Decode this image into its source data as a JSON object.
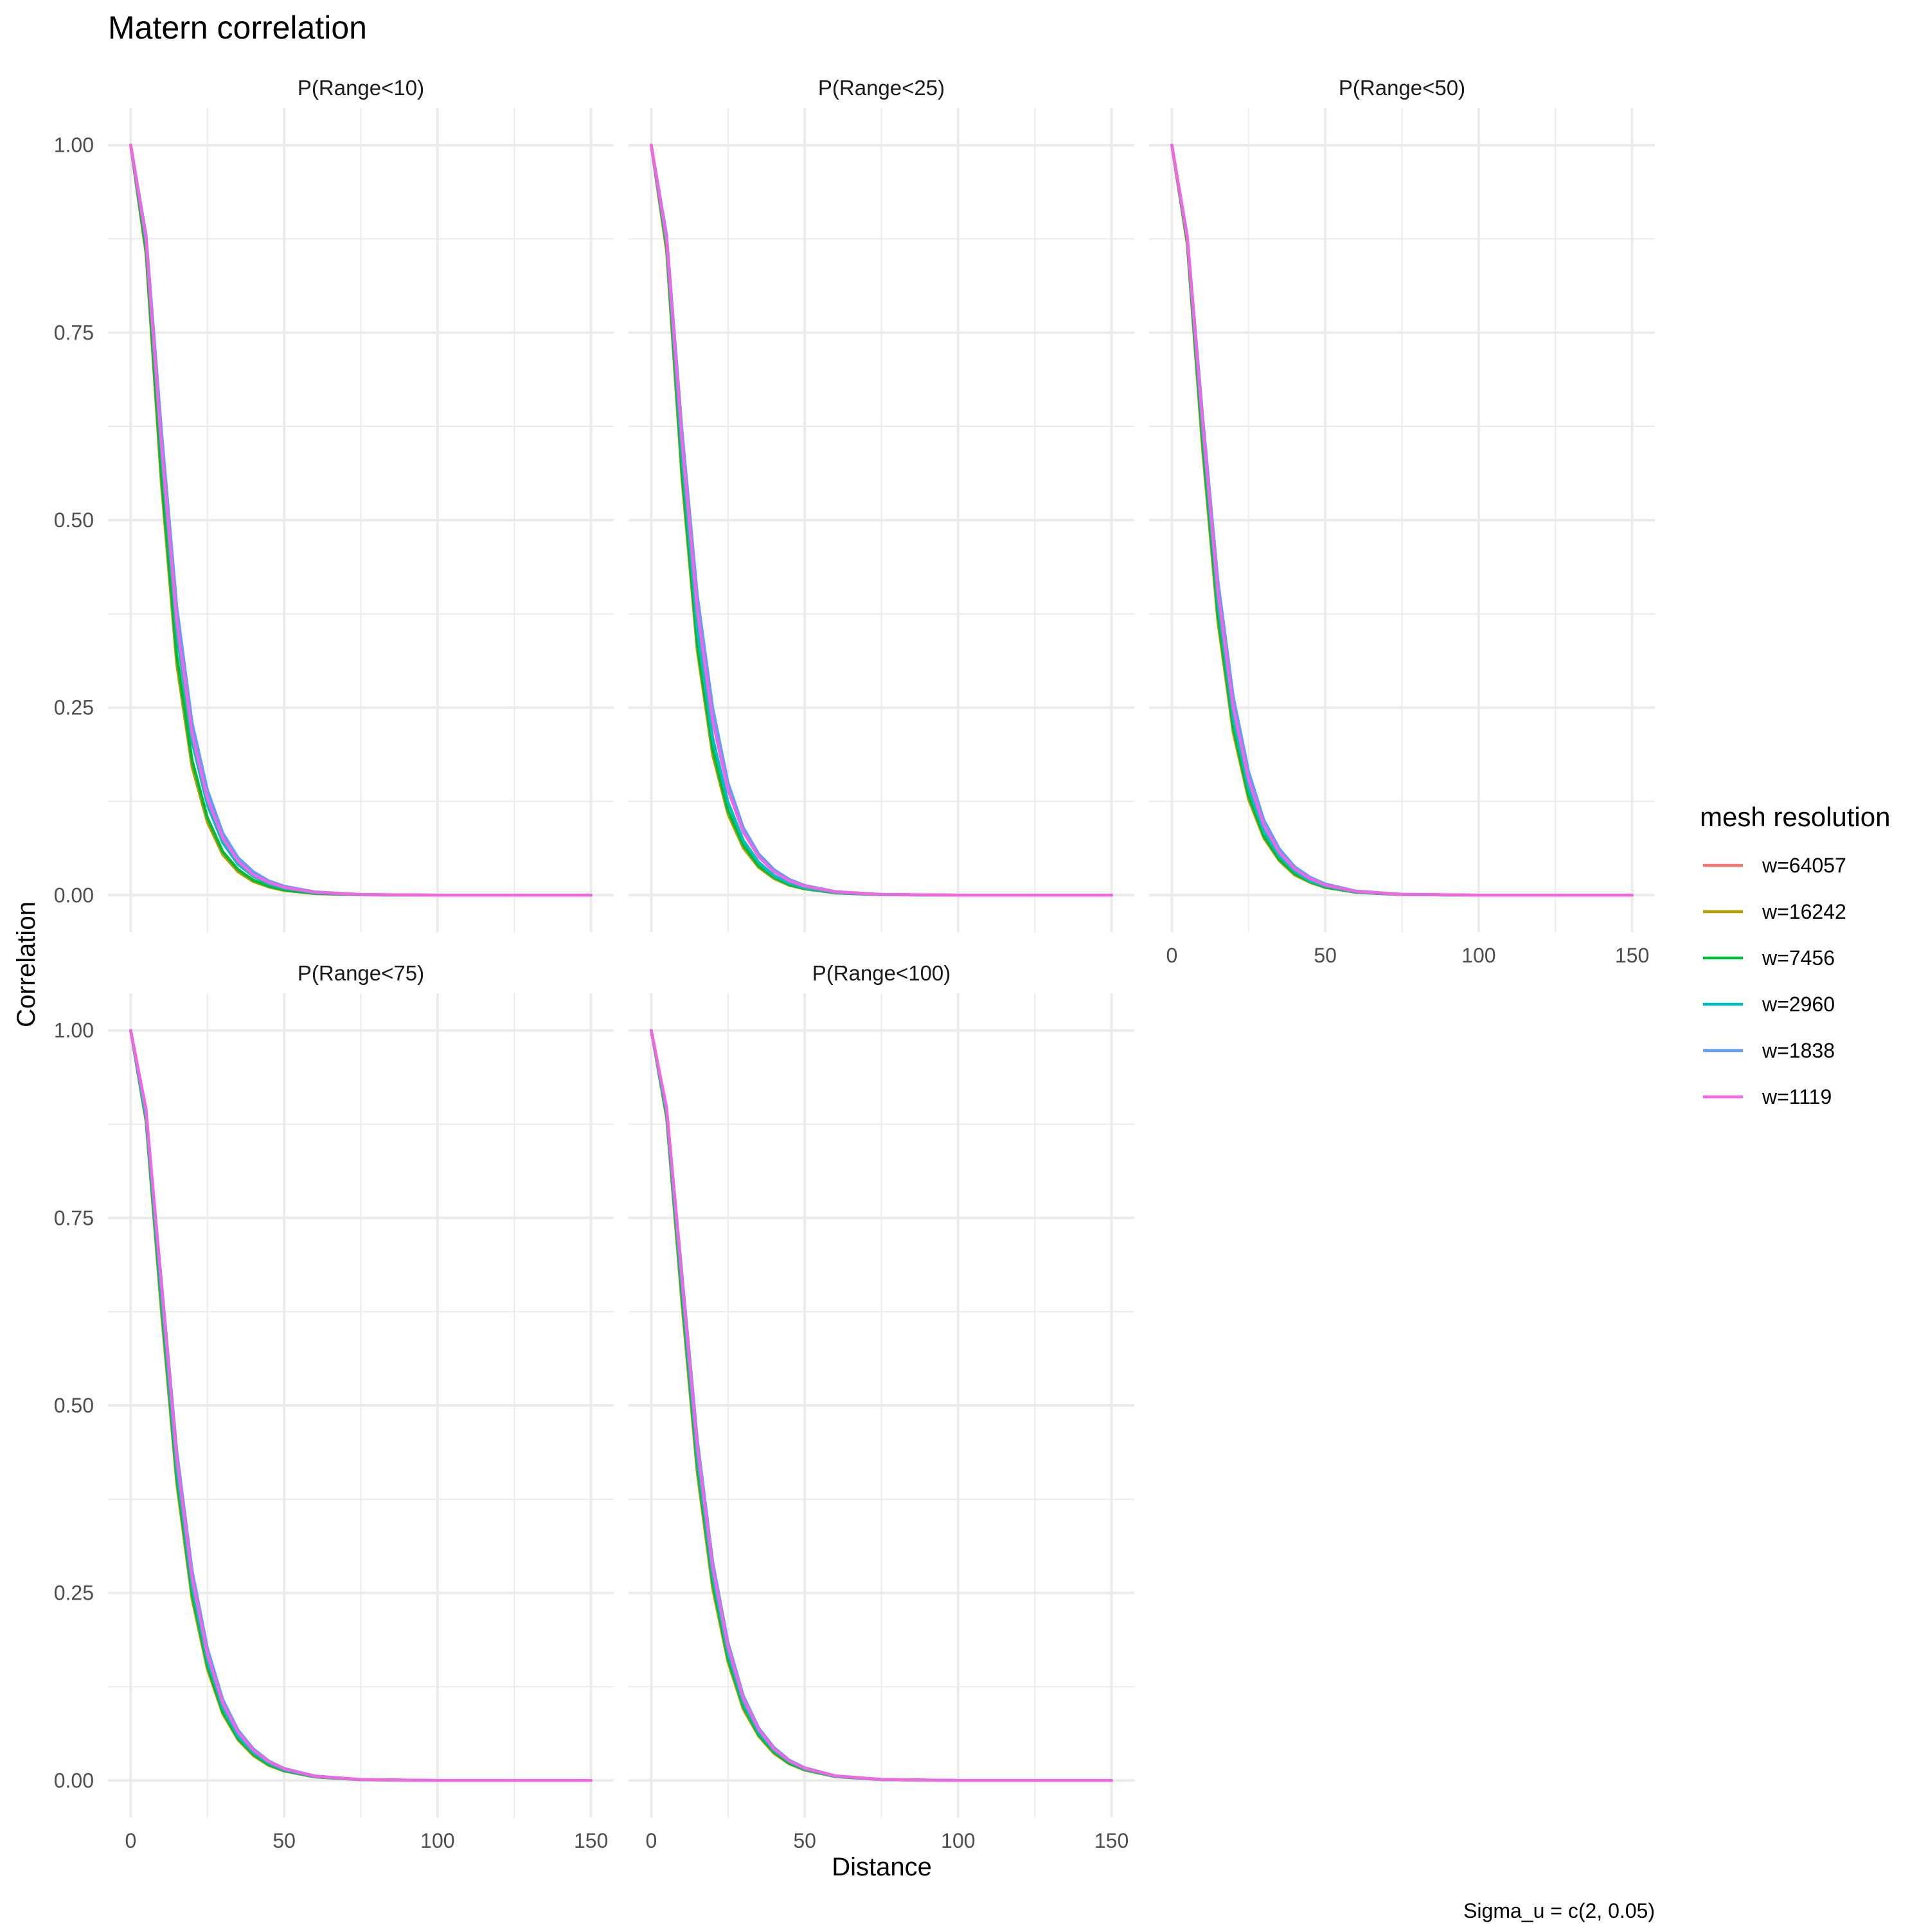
{
  "chart_data": {
    "type": "line",
    "title": "Matern correlation",
    "xlabel": "Distance",
    "ylabel": "Correlation",
    "caption": "Sigma_u = c(2, 0.05)",
    "xlim": [
      0,
      150
    ],
    "ylim": [
      0,
      1
    ],
    "x_ticks": [
      0,
      50,
      100,
      150
    ],
    "y_ticks": [
      0,
      0.25,
      0.5,
      0.75,
      1
    ],
    "x_tick_labels": [
      "0",
      "50",
      "100",
      "150"
    ],
    "y_tick_labels": [
      "0.00",
      "0.25",
      "0.50",
      "0.75",
      "1.00"
    ],
    "grid": true,
    "legend": {
      "title": "mesh resolution",
      "position": "right",
      "entries": [
        "w=64057",
        "w=16242",
        "w=7456",
        "w=2960",
        "w=1838",
        "w=1119"
      ]
    },
    "series_colors": [
      "#F8766D",
      "#B79F00",
      "#00BA38",
      "#00BFC4",
      "#619CFF",
      "#F564E3"
    ],
    "x": [
      0,
      5,
      10,
      15,
      20,
      25,
      30,
      35,
      40,
      45,
      50,
      60,
      75,
      100,
      150
    ],
    "panels": [
      {
        "label": "P(Range<10)",
        "series": [
          {
            "name": "w=64057",
            "values": [
              1.0,
              0.855,
              0.55,
              0.31,
              0.172,
              0.098,
              0.055,
              0.032,
              0.019,
              0.011,
              0.0065,
              0.0022,
              0.0004,
              0.0,
              0.0
            ]
          },
          {
            "name": "w=16242",
            "values": [
              1.0,
              0.855,
              0.548,
              0.308,
              0.171,
              0.097,
              0.054,
              0.031,
              0.018,
              0.011,
              0.0063,
              0.0021,
              0.0004,
              0.0,
              0.0
            ]
          },
          {
            "name": "w=7456",
            "values": [
              1.0,
              0.86,
              0.56,
              0.32,
              0.18,
              0.103,
              0.058,
              0.034,
              0.02,
              0.012,
              0.007,
              0.0024,
              0.0005,
              0.0,
              0.0
            ]
          },
          {
            "name": "w=2960",
            "values": [
              1.0,
              0.87,
              0.59,
              0.35,
              0.205,
              0.12,
              0.07,
              0.041,
              0.025,
              0.015,
              0.0093,
              0.0033,
              0.0006,
              0.0,
              0.0
            ]
          },
          {
            "name": "w=1838",
            "values": [
              1.0,
              0.88,
              0.62,
              0.385,
              0.23,
              0.14,
              0.083,
              0.05,
              0.031,
              0.019,
              0.012,
              0.0044,
              0.0009,
              0.0,
              0.0
            ]
          },
          {
            "name": "w=1119",
            "values": [
              1.0,
              0.875,
              0.6,
              0.365,
              0.215,
              0.128,
              0.076,
              0.045,
              0.027,
              0.017,
              0.0105,
              0.0038,
              0.0008,
              0.0,
              0.0
            ]
          }
        ]
      },
      {
        "label": "P(Range<25)",
        "series": [
          {
            "name": "w=64057",
            "values": [
              1.0,
              0.86,
              0.56,
              0.33,
              0.19,
              0.11,
              0.065,
              0.038,
              0.023,
              0.014,
              0.0085,
              0.003,
              0.0006,
              0.0,
              0.0
            ]
          },
          {
            "name": "w=16242",
            "values": [
              1.0,
              0.858,
              0.555,
              0.326,
              0.187,
              0.108,
              0.063,
              0.037,
              0.022,
              0.013,
              0.0082,
              0.0029,
              0.0006,
              0.0,
              0.0
            ]
          },
          {
            "name": "w=7456",
            "values": [
              1.0,
              0.865,
              0.565,
              0.335,
              0.195,
              0.113,
              0.067,
              0.039,
              0.024,
              0.014,
              0.0088,
              0.0031,
              0.0006,
              0.0,
              0.0
            ]
          },
          {
            "name": "w=2960",
            "values": [
              1.0,
              0.87,
              0.585,
              0.355,
              0.21,
              0.124,
              0.073,
              0.044,
              0.026,
              0.016,
              0.0098,
              0.0035,
              0.0007,
              0.0,
              0.0
            ]
          },
          {
            "name": "w=1838",
            "values": [
              1.0,
              0.88,
              0.62,
              0.4,
              0.25,
              0.15,
              0.09,
              0.055,
              0.034,
              0.021,
              0.013,
              0.0048,
              0.001,
              0.0,
              0.0
            ]
          },
          {
            "name": "w=1119",
            "values": [
              1.0,
              0.875,
              0.605,
              0.38,
              0.232,
              0.14,
              0.084,
              0.051,
              0.031,
              0.019,
              0.012,
              0.0043,
              0.0009,
              0.0,
              0.0
            ]
          }
        ]
      },
      {
        "label": "P(Range<50)",
        "series": [
          {
            "name": "w=64057",
            "values": [
              1.0,
              0.87,
              0.6,
              0.37,
              0.22,
              0.13,
              0.078,
              0.047,
              0.028,
              0.017,
              0.0105,
              0.0038,
              0.0008,
              0.0,
              0.0
            ]
          },
          {
            "name": "w=16242",
            "values": [
              1.0,
              0.868,
              0.595,
              0.365,
              0.217,
              0.128,
              0.076,
              0.046,
              0.027,
              0.017,
              0.0102,
              0.0037,
              0.0008,
              0.0,
              0.0
            ]
          },
          {
            "name": "w=7456",
            "values": [
              1.0,
              0.872,
              0.605,
              0.375,
              0.224,
              0.133,
              0.079,
              0.048,
              0.029,
              0.018,
              0.0108,
              0.0039,
              0.0008,
              0.0,
              0.0
            ]
          },
          {
            "name": "w=2960",
            "values": [
              1.0,
              0.876,
              0.62,
              0.39,
              0.236,
              0.142,
              0.085,
              0.052,
              0.032,
              0.019,
              0.012,
              0.0043,
              0.0009,
              0.0,
              0.0
            ]
          },
          {
            "name": "w=1838",
            "values": [
              1.0,
              0.88,
              0.64,
              0.42,
              0.265,
              0.165,
              0.1,
              0.062,
              0.038,
              0.024,
              0.015,
              0.0055,
              0.0012,
              0.0,
              0.0
            ]
          },
          {
            "name": "w=1119",
            "values": [
              1.0,
              0.878,
              0.63,
              0.405,
              0.25,
              0.154,
              0.093,
              0.057,
              0.035,
              0.022,
              0.0135,
              0.005,
              0.001,
              0.0,
              0.0
            ]
          }
        ]
      },
      {
        "label": "P(Range<75)",
        "series": [
          {
            "name": "w=64057",
            "values": [
              1.0,
              0.88,
              0.63,
              0.4,
              0.245,
              0.15,
              0.09,
              0.055,
              0.034,
              0.021,
              0.013,
              0.0047,
              0.001,
              0.0,
              0.0
            ]
          },
          {
            "name": "w=16242",
            "values": [
              1.0,
              0.878,
              0.625,
              0.396,
              0.242,
              0.148,
              0.089,
              0.054,
              0.033,
              0.02,
              0.0125,
              0.0046,
              0.001,
              0.0,
              0.0
            ]
          },
          {
            "name": "w=7456",
            "values": [
              1.0,
              0.882,
              0.635,
              0.405,
              0.249,
              0.153,
              0.092,
              0.056,
              0.035,
              0.021,
              0.0132,
              0.0048,
              0.001,
              0.0,
              0.0
            ]
          },
          {
            "name": "w=2960",
            "values": [
              1.0,
              0.885,
              0.645,
              0.415,
              0.258,
              0.16,
              0.097,
              0.059,
              0.037,
              0.023,
              0.014,
              0.0052,
              0.0011,
              0.0,
              0.0
            ]
          },
          {
            "name": "w=1838",
            "values": [
              1.0,
              0.89,
              0.665,
              0.44,
              0.28,
              0.176,
              0.108,
              0.067,
              0.042,
              0.026,
              0.016,
              0.006,
              0.0013,
              0.0,
              0.0
            ]
          },
          {
            "name": "w=1119",
            "values": [
              1.0,
              0.895,
              0.66,
              0.43,
              0.27,
              0.168,
              0.103,
              0.064,
              0.04,
              0.025,
              0.0155,
              0.0057,
              0.0012,
              0.0,
              0.0
            ]
          }
        ]
      },
      {
        "label": "P(Range<100)",
        "series": [
          {
            "name": "w=64057",
            "values": [
              1.0,
              0.885,
              0.64,
              0.415,
              0.26,
              0.16,
              0.097,
              0.06,
              0.037,
              0.023,
              0.014,
              0.0052,
              0.0011,
              0.0,
              0.0
            ]
          },
          {
            "name": "w=16242",
            "values": [
              1.0,
              0.883,
              0.635,
              0.41,
              0.256,
              0.158,
              0.095,
              0.059,
              0.036,
              0.022,
              0.0138,
              0.0051,
              0.0011,
              0.0,
              0.0
            ]
          },
          {
            "name": "w=7456",
            "values": [
              1.0,
              0.887,
              0.645,
              0.42,
              0.264,
              0.163,
              0.099,
              0.061,
              0.038,
              0.023,
              0.0145,
              0.0053,
              0.0011,
              0.0,
              0.0
            ]
          },
          {
            "name": "w=2960",
            "values": [
              1.0,
              0.89,
              0.655,
              0.43,
              0.272,
              0.169,
              0.103,
              0.064,
              0.04,
              0.025,
              0.0152,
              0.0056,
              0.0012,
              0.0,
              0.0
            ]
          },
          {
            "name": "w=1838",
            "values": [
              1.0,
              0.895,
              0.675,
              0.455,
              0.292,
              0.184,
              0.113,
              0.07,
              0.044,
              0.027,
              0.017,
              0.0063,
              0.0014,
              0.0,
              0.0
            ]
          },
          {
            "name": "w=1119",
            "values": [
              1.0,
              0.897,
              0.668,
              0.445,
              0.284,
              0.178,
              0.109,
              0.068,
              0.042,
              0.026,
              0.0163,
              0.006,
              0.0013,
              0.0,
              0.0
            ]
          }
        ]
      }
    ]
  }
}
